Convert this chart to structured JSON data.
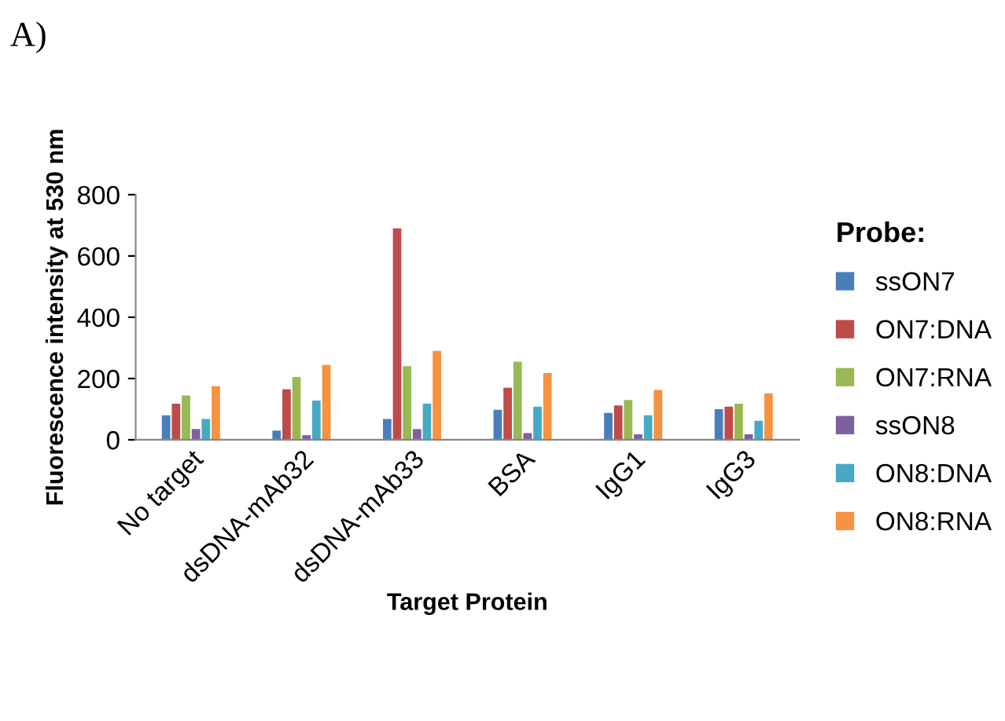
{
  "chart_data": {
    "type": "bar",
    "title": "A)",
    "xlabel": "Target Protein",
    "ylabel": "Fluorescence intensity at 530 nm",
    "legend_title": "Probe:",
    "categories": [
      "No target",
      "dsDNA-mAb32",
      "dsDNA-mAb33",
      "BSA",
      "IgG1",
      "IgG3"
    ],
    "series": [
      {
        "name": "ssON7",
        "color": "#4a7ebb",
        "values": [
          80,
          30,
          68,
          98,
          88,
          100
        ]
      },
      {
        "name": "ON7:DNA",
        "color": "#be4b48",
        "values": [
          118,
          165,
          690,
          170,
          112,
          108
        ]
      },
      {
        "name": "ON7:RNA",
        "color": "#98b954",
        "values": [
          145,
          205,
          240,
          255,
          130,
          118
        ]
      },
      {
        "name": "ssON8",
        "color": "#7d60a0",
        "values": [
          35,
          15,
          35,
          22,
          18,
          18
        ]
      },
      {
        "name": "ON8:DNA",
        "color": "#46aac5",
        "values": [
          68,
          128,
          118,
          108,
          80,
          62
        ]
      },
      {
        "name": "ON8:RNA",
        "color": "#f69240",
        "values": [
          175,
          245,
          290,
          218,
          163,
          152
        ]
      }
    ],
    "ylim": [
      0,
      800
    ],
    "yticks": [
      0,
      200,
      400,
      600,
      800
    ],
    "grid": false,
    "legend": "right"
  }
}
